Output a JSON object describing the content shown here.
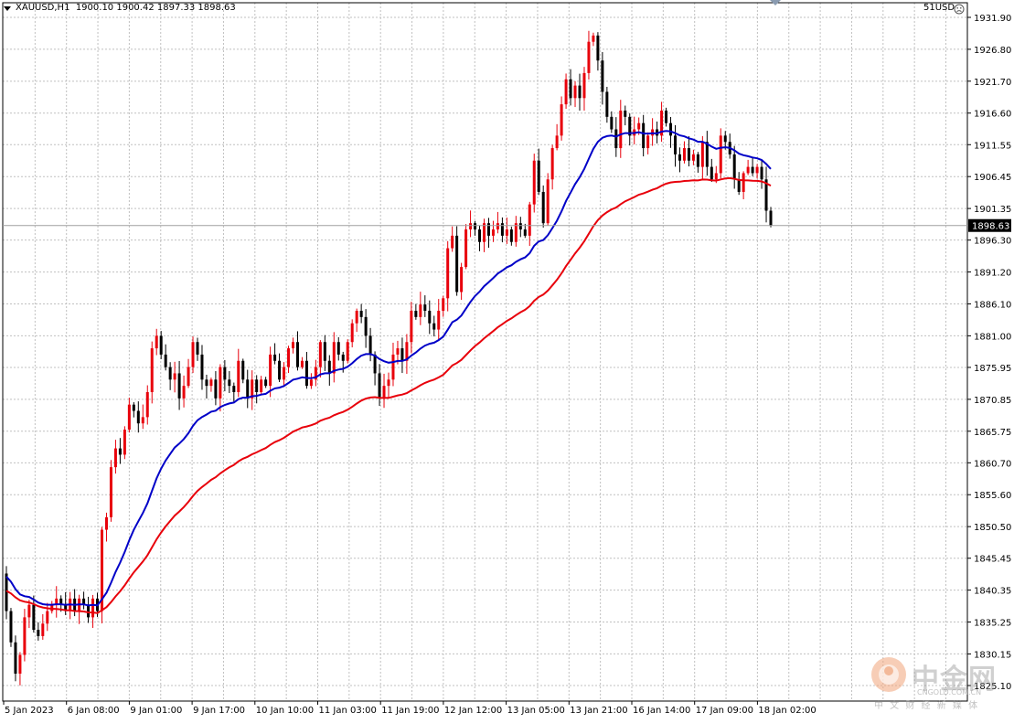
{
  "header": {
    "symbol": "XAUUSD,H1",
    "ohlc": "1900.10 1900.42 1897.33 1898.63",
    "account": "51USD"
  },
  "current_price_label": "1898.63",
  "watermark": {
    "brand": "中金网",
    "sub": "CNGOLD.COM.CN",
    "tagline": "中 文 财 经 新 媒 体"
  },
  "colors": {
    "up": "#e8000b",
    "down": "#000000",
    "ma_fast": "#0000c8",
    "ma_slow": "#e8000b",
    "grid": "#c0c0c0",
    "price_line": "#a0a0a0"
  },
  "icons": {
    "triangle": "dropdown-triangle-icon",
    "smile": "smiley-icon",
    "scroll": "scroll-position-icon"
  },
  "chart_data": {
    "type": "candlestick",
    "timeframe": "H1",
    "ylim": [
      1825.1,
      1934.0
    ],
    "yticks": [
      "1931.90",
      "1926.80",
      "1921.70",
      "1916.60",
      "1911.55",
      "1906.45",
      "1901.35",
      "1896.30",
      "1891.20",
      "1886.10",
      "1881.00",
      "1875.95",
      "1870.85",
      "1865.75",
      "1860.70",
      "1855.60",
      "1850.50",
      "1845.45",
      "1840.35",
      "1835.25",
      "1830.15",
      "1825.10"
    ],
    "xticks": [
      "5 Jan 2023",
      "6 Jan 08:00",
      "9 Jan 01:00",
      "9 Jan 17:00",
      "10 Jan 10:00",
      "11 Jan 03:00",
      "11 Jan 19:00",
      "12 Jan 12:00",
      "13 Jan 05:00",
      "13 Jan 21:00",
      "16 Jan 14:00",
      "17 Jan 09:00",
      "18 Jan 02:00"
    ],
    "current_price": 1898.63,
    "closes": [
      1837,
      1832,
      1827,
      1830,
      1836,
      1838,
      1834,
      1833,
      1835,
      1837,
      1838,
      1839,
      1838,
      1837,
      1839,
      1837,
      1839,
      1838,
      1836,
      1839,
      1837,
      1850,
      1852,
      1860,
      1863,
      1862,
      1866,
      1870,
      1869,
      1867,
      1868,
      1872,
      1879,
      1881,
      1878,
      1876,
      1874,
      1875,
      1871,
      1873,
      1876,
      1880,
      1878,
      1874,
      1873,
      1874,
      1871,
      1876,
      1874,
      1873,
      1872,
      1877,
      1874,
      1871,
      1874,
      1872,
      1874,
      1873,
      1878,
      1877,
      1874,
      1876,
      1879,
      1880,
      1876,
      1877,
      1873,
      1874,
      1876,
      1880,
      1877,
      1875,
      1880,
      1878,
      1877,
      1880,
      1883,
      1885,
      1884,
      1881,
      1878,
      1875,
      1871,
      1873,
      1874,
      1878,
      1879,
      1877,
      1880,
      1885,
      1884,
      1886,
      1885,
      1883,
      1882,
      1885,
      1887,
      1895,
      1897,
      1888,
      1892,
      1898,
      1899,
      1898,
      1896,
      1899,
      1897,
      1898,
      1899,
      1897,
      1898,
      1896,
      1899,
      1898,
      1897,
      1902,
      1909,
      1904,
      1899,
      1906,
      1911,
      1913,
      1918,
      1922,
      1919,
      1921,
      1919,
      1923,
      1928,
      1929,
      1925,
      1920,
      1916,
      1914,
      1911,
      1917,
      1916,
      1913,
      1914,
      1915,
      1911,
      1913,
      1914,
      1913,
      1917,
      1915,
      1913,
      1910,
      1909,
      1911,
      1909,
      1910,
      1908,
      1912,
      1908,
      1906,
      1907,
      1913,
      1912,
      1910,
      1906,
      1904,
      1907,
      1908,
      1907,
      1908,
      1906,
      1901,
      1898.63
    ]
  }
}
